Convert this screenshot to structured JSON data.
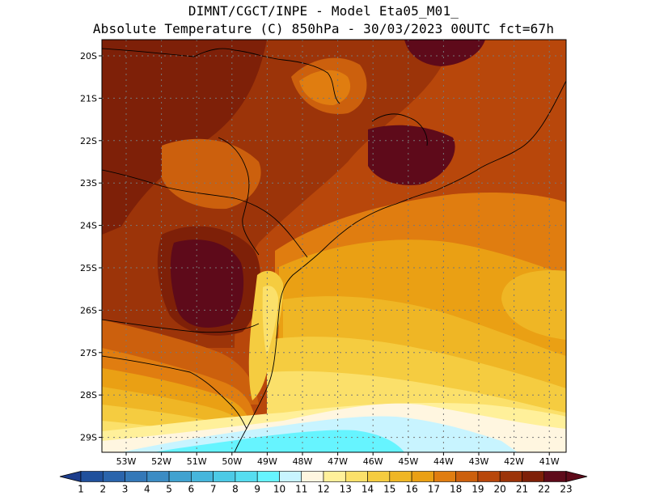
{
  "header": {
    "line1": "DIMNT/CGCT/INPE -  Model Eta05_M01_",
    "line2": "Absolute Temperature (C) 850hPa -  30/03/2023 00UTC fct=67h"
  },
  "map": {
    "lat_labels": [
      "20S",
      "21S",
      "22S",
      "23S",
      "24S",
      "25S",
      "26S",
      "27S",
      "28S",
      "29S"
    ],
    "lon_labels": [
      "53W",
      "52W",
      "51W",
      "50W",
      "49W",
      "48W",
      "47W",
      "46W",
      "45W",
      "44W",
      "43W",
      "42W",
      "41W"
    ],
    "grid": true
  },
  "colorbar": {
    "labels": [
      "1",
      "2",
      "3",
      "4",
      "5",
      "6",
      "7",
      "8",
      "9",
      "10",
      "11",
      "12",
      "13",
      "14",
      "15",
      "16",
      "17",
      "18",
      "19",
      "20",
      "21",
      "22",
      "23"
    ],
    "colors": [
      "#1c3d8c",
      "#20509c",
      "#2a64ac",
      "#3478b8",
      "#3c8cc4",
      "#40a2d0",
      "#46b6dc",
      "#4ccae6",
      "#56ddf0",
      "#66f4ff",
      "#c8f4ff",
      "#fff6e0",
      "#fff09a",
      "#fbe06a",
      "#f5cc40",
      "#efb625",
      "#eaa014",
      "#e07d10",
      "#cc600d",
      "#b8470b",
      "#9c3409",
      "#7e2008",
      "#5e0a1a"
    ]
  }
}
